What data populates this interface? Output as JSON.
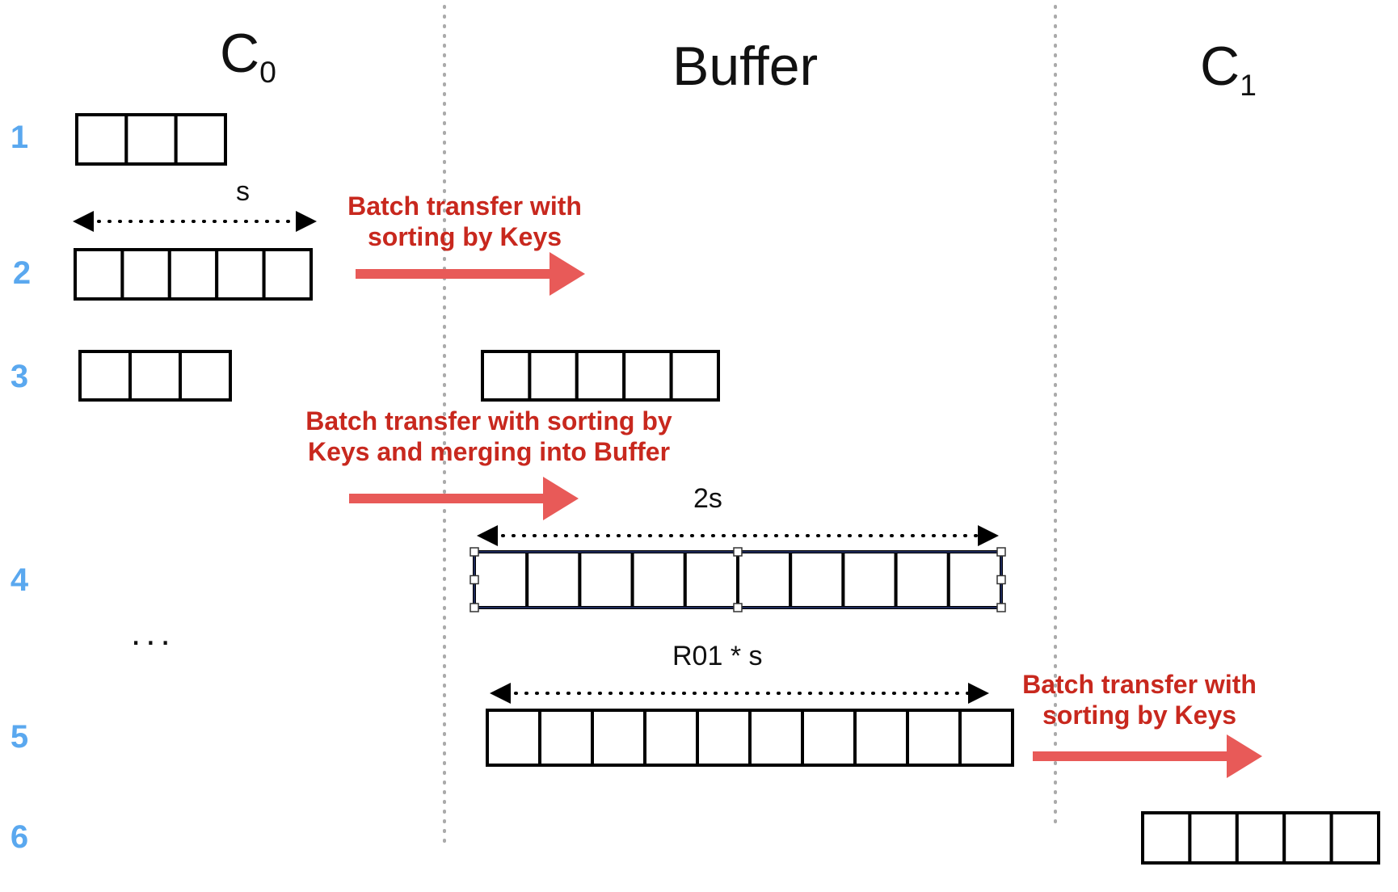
{
  "columns": {
    "c0": {
      "letter": "C",
      "subscript": "0"
    },
    "buffer": "Buffer",
    "c1": {
      "letter": "C",
      "subscript": "1"
    }
  },
  "steps": [
    "1",
    "2",
    "3",
    "4",
    "5",
    "6"
  ],
  "labels": {
    "step2_line1": "Batch transfer with",
    "step2_line2": "sorting by Keys",
    "step3_line1": "Batch transfer with sorting by",
    "step3_line2": "Keys and merging into Buffer",
    "step5_line1": "Batch transfer with",
    "step5_line2": "sorting by Keys"
  },
  "dimensions": {
    "s": "s",
    "two_s": "2s",
    "r01_s": "R01 * s"
  },
  "ellipsis": "...",
  "blocks": {
    "c0_step1_cells": 3,
    "c0_step2_cells": 5,
    "c0_step3_cells": 3,
    "buffer_step3_cells": 5,
    "buffer_step4_cells": 10,
    "buffer_step5_cells": 10,
    "c1_step6_cells": 5
  },
  "colors": {
    "step_number": "#5aa8ef",
    "arrow": "#e85a58",
    "label": "#c8281e",
    "divider": "#aaaaaa",
    "selection": "#1e2a5a"
  }
}
